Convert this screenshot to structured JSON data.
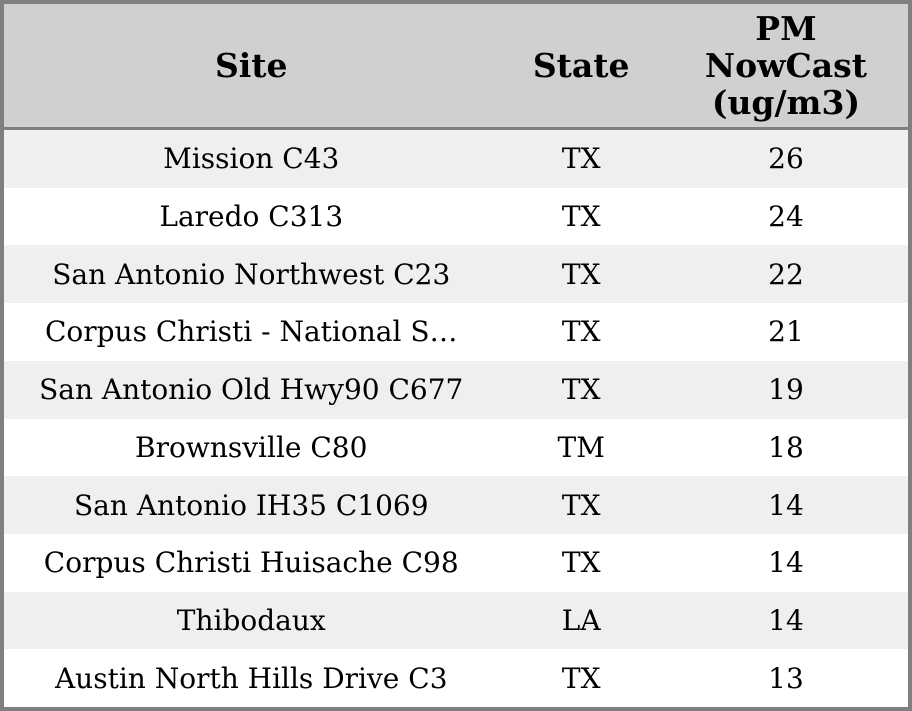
{
  "colors": {
    "frame_border": "#7f7f7f",
    "header_background": "#d0d0d0",
    "row_stripe": "#efefef",
    "row_background": "#ffffff",
    "text": "#000000"
  },
  "header": {
    "site_label": "Site",
    "state_label": "State",
    "pm_label_lines": [
      "PM",
      "NowCast",
      "(ug/m3)"
    ]
  },
  "chart_data": {
    "type": "table",
    "title": "",
    "columns": [
      "Site",
      "State",
      "PM NowCast (ug/m3)"
    ],
    "rows": [
      [
        "Mission C43",
        "TX",
        26
      ],
      [
        "Laredo C313",
        "TX",
        24
      ],
      [
        "San Antonio Northwest C23",
        "TX",
        22
      ],
      [
        "Corpus Christi - National S…",
        "TX",
        21
      ],
      [
        "San Antonio Old Hwy90 C677",
        "TX",
        19
      ],
      [
        "Brownsville C80",
        "TM",
        18
      ],
      [
        "San Antonio IH35 C1069",
        "TX",
        14
      ],
      [
        "Corpus Christi Huisache C98",
        "TX",
        14
      ],
      [
        "Thibodaux",
        "LA",
        14
      ],
      [
        "Austin North Hills Drive C3",
        "TX",
        13
      ]
    ]
  }
}
